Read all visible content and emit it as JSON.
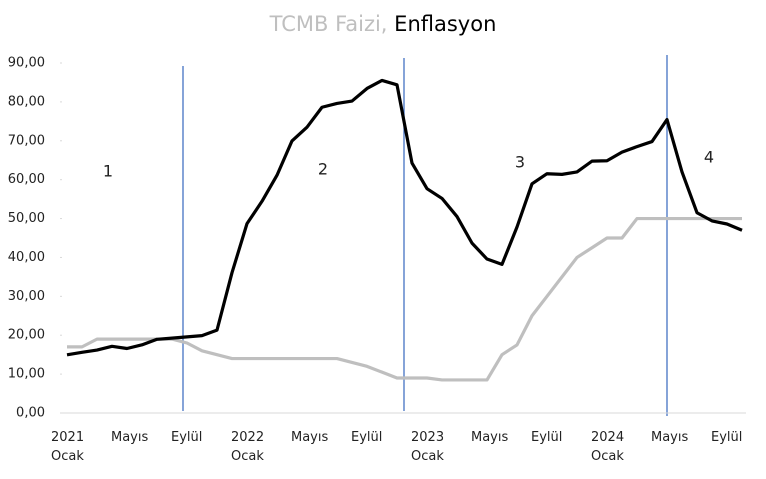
{
  "chart_data": {
    "type": "line",
    "title_parts": [
      "TCMB Faizi,",
      "Enflasyon"
    ],
    "categories": [
      "2021\nOcak",
      null,
      null,
      null,
      "Mayıs",
      null,
      null,
      null,
      "Eylül",
      null,
      null,
      null,
      "2022\nOcak",
      null,
      null,
      null,
      "Mayıs",
      null,
      null,
      null,
      "Eylül",
      null,
      null,
      null,
      "2023\nOcak",
      null,
      null,
      null,
      "Mayıs",
      null,
      null,
      null,
      "Eylül",
      null,
      null,
      null,
      "2024\nOcak",
      null,
      null,
      null,
      "Mayıs",
      null,
      null,
      null,
      "Eylül",
      null
    ],
    "series": [
      {
        "name": "TCMB Faizi",
        "color": "#bfbfbf",
        "values": [
          17,
          17,
          19,
          19,
          19,
          19,
          19,
          19,
          18,
          16,
          15,
          14,
          14,
          14,
          14,
          14,
          14,
          14,
          14,
          13,
          12,
          10.5,
          9,
          9,
          9,
          8.5,
          8.5,
          8.5,
          8.5,
          15,
          17.5,
          25,
          30,
          35,
          40,
          42.5,
          45,
          45,
          50,
          50,
          50,
          50,
          50,
          50,
          50,
          50
        ]
      },
      {
        "name": "Enflasyon",
        "color": "#000000",
        "values": [
          14.97,
          15.61,
          16.19,
          17.14,
          16.59,
          17.53,
          18.95,
          19.25,
          19.58,
          19.89,
          21.31,
          36.08,
          48.69,
          54.44,
          61.14,
          69.97,
          73.5,
          78.62,
          79.6,
          80.21,
          83.45,
          85.51,
          84.39,
          64.27,
          57.68,
          55.18,
          50.51,
          43.68,
          39.59,
          38.21,
          47.83,
          58.94,
          61.53,
          61.36,
          61.98,
          64.77,
          64.86,
          67.07,
          68.5,
          69.8,
          75.45,
          62,
          51.5,
          49.4,
          48.6,
          47
        ]
      }
    ],
    "annotations": [
      "1",
      "2",
      "3",
      "4"
    ],
    "ylim": [
      0,
      90
    ],
    "yticks": [
      {
        "value": 0,
        "label": "0,00"
      },
      {
        "value": 10,
        "label": "10,00"
      },
      {
        "value": 20,
        "label": "20,00"
      },
      {
        "value": 30,
        "label": "30,00"
      },
      {
        "value": 40,
        "label": "40,00"
      },
      {
        "value": 50,
        "label": "50,00"
      },
      {
        "value": 60,
        "label": "60,00"
      },
      {
        "value": 70,
        "label": "70,00"
      },
      {
        "value": 80,
        "label": "80,00"
      },
      {
        "value": 90,
        "label": "90,00"
      }
    ],
    "grid": false
  }
}
